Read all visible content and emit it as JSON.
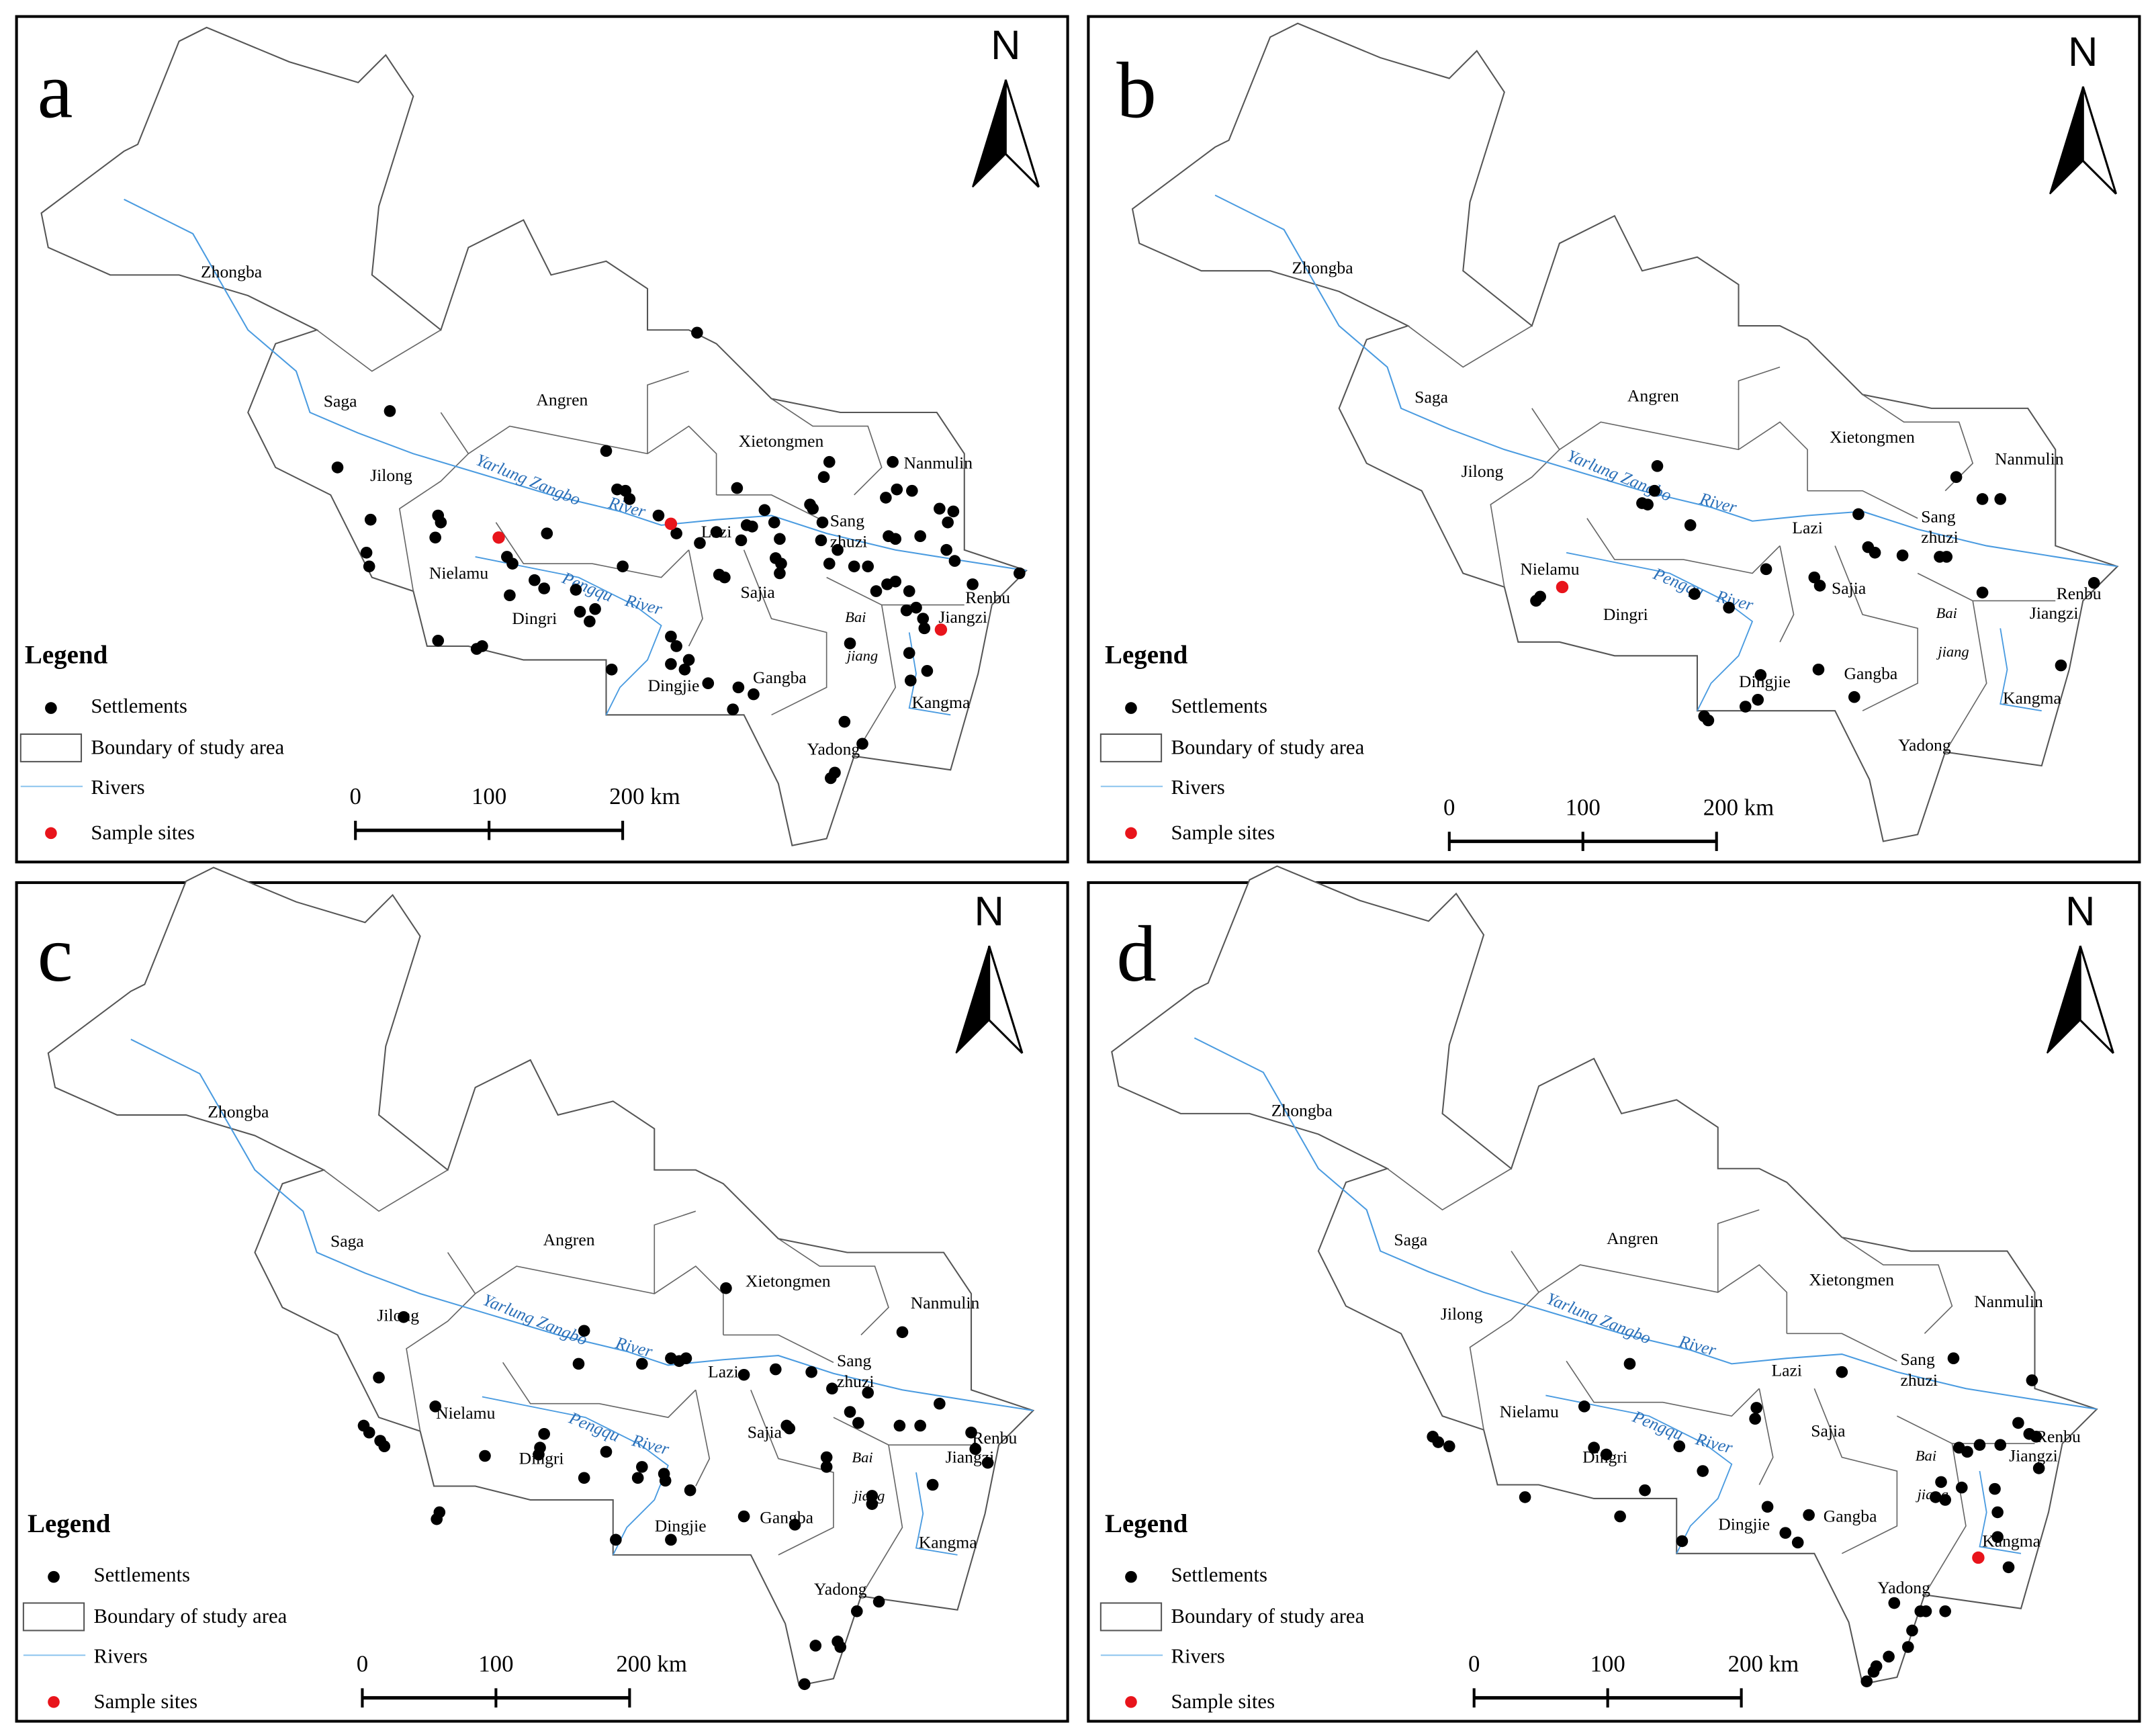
{
  "panels": [
    {
      "letter": "a"
    },
    {
      "letter": "b"
    },
    {
      "letter": "c"
    },
    {
      "letter": "d"
    }
  ],
  "north": "N",
  "place_labels": [
    "Zhongba",
    "Saga",
    "Angren",
    "Jilong",
    "Xietongmen",
    "Nanmulin",
    "Nielamu",
    "Dingri",
    "Lazi",
    "Sang",
    "zhuzi",
    "Sajia",
    "Renbu",
    "Jiangzi",
    "Dingjie",
    "Gangba",
    "Kangma",
    "Yadong",
    "Bai",
    "jiang"
  ],
  "river_labels": [
    "Yarlung Zangbo",
    "River",
    "Pengqu",
    "River"
  ],
  "legend": {
    "title": "Legend",
    "items": [
      "Settlements",
      "Boundary of study area",
      "Rivers",
      "Sample sites"
    ]
  },
  "scale_bar": {
    "labels": [
      "0",
      "100",
      "200 km"
    ]
  }
}
